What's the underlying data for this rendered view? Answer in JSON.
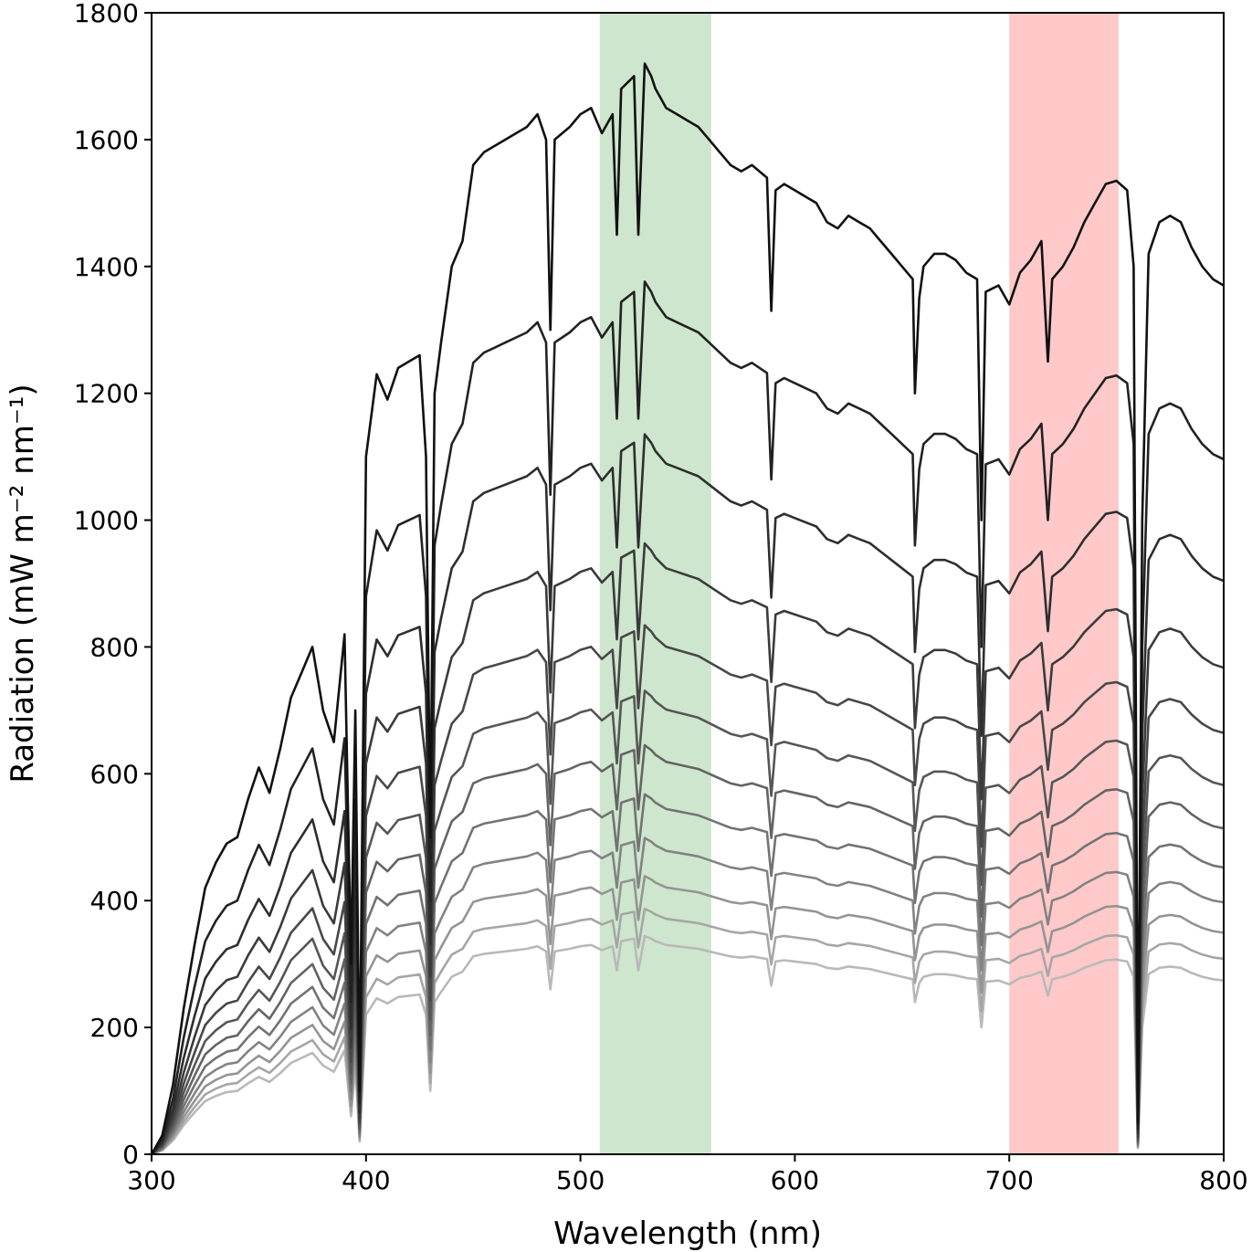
{
  "chart_data": {
    "type": "line",
    "xlabel": "Wavelength (nm)",
    "ylabel": "Radiation (mW m⁻² nm⁻¹)",
    "xlim": [
      300,
      800
    ],
    "ylim": [
      0,
      1800
    ],
    "xticks": [
      300,
      400,
      500,
      600,
      700,
      800
    ],
    "yticks": [
      0,
      200,
      400,
      600,
      800,
      1000,
      1200,
      1400,
      1600,
      1800
    ],
    "grid": false,
    "legend": "none",
    "bands": [
      {
        "x0": 509,
        "x1": 561,
        "color": "#cde6cd"
      },
      {
        "x0": 700,
        "x1": 751,
        "color": "#ffc9c9"
      }
    ],
    "series_scales": [
      1.0,
      0.8,
      0.66,
      0.56,
      0.485,
      0.425,
      0.375,
      0.33,
      0.29,
      0.255,
      0.225,
      0.2
    ],
    "series_colors": [
      "#111111",
      "#222222",
      "#2e2e2e",
      "#3b3b3b",
      "#484848",
      "#565656",
      "#646464",
      "#737373",
      "#838383",
      "#949494",
      "#a6a6a6",
      "#b9b9b9"
    ],
    "base_spectrum": {
      "x": [
        300,
        305,
        310,
        315,
        320,
        325,
        330,
        335,
        340,
        345,
        350,
        355,
        360,
        365,
        370,
        375,
        380,
        385,
        390,
        393,
        395,
        397,
        400,
        405,
        410,
        415,
        420,
        425,
        428,
        430,
        432,
        435,
        440,
        445,
        450,
        455,
        460,
        465,
        470,
        475,
        480,
        484,
        486,
        488,
        495,
        500,
        505,
        510,
        515,
        517,
        519,
        525,
        527,
        530,
        533,
        535,
        540,
        545,
        550,
        555,
        560,
        565,
        570,
        575,
        580,
        587,
        589,
        591,
        595,
        600,
        605,
        610,
        615,
        620,
        625,
        630,
        635,
        640,
        645,
        650,
        655,
        656,
        658,
        660,
        665,
        670,
        675,
        680,
        685,
        687,
        689,
        695,
        700,
        705,
        710,
        715,
        718,
        720,
        725,
        730,
        735,
        740,
        745,
        750,
        755,
        758,
        760,
        762,
        765,
        770,
        775,
        780,
        785,
        790,
        795,
        800
      ],
      "y": [
        0,
        30,
        110,
        230,
        330,
        420,
        460,
        490,
        500,
        560,
        610,
        570,
        640,
        720,
        760,
        800,
        700,
        650,
        820,
        300,
        700,
        100,
        1100,
        1230,
        1190,
        1240,
        1250,
        1260,
        1100,
        500,
        1200,
        1280,
        1400,
        1440,
        1560,
        1580,
        1590,
        1600,
        1610,
        1620,
        1640,
        1600,
        1300,
        1600,
        1620,
        1640,
        1650,
        1610,
        1640,
        1450,
        1680,
        1700,
        1450,
        1720,
        1700,
        1680,
        1650,
        1640,
        1630,
        1620,
        1600,
        1580,
        1560,
        1550,
        1560,
        1540,
        1330,
        1520,
        1530,
        1520,
        1510,
        1500,
        1470,
        1460,
        1480,
        1470,
        1460,
        1440,
        1420,
        1400,
        1380,
        1200,
        1350,
        1400,
        1420,
        1420,
        1410,
        1390,
        1380,
        1000,
        1360,
        1370,
        1340,
        1390,
        1410,
        1440,
        1250,
        1380,
        1400,
        1430,
        1470,
        1500,
        1530,
        1535,
        1520,
        1400,
        50,
        1000,
        1420,
        1470,
        1480,
        1470,
        1430,
        1400,
        1380,
        1370
      ]
    }
  }
}
